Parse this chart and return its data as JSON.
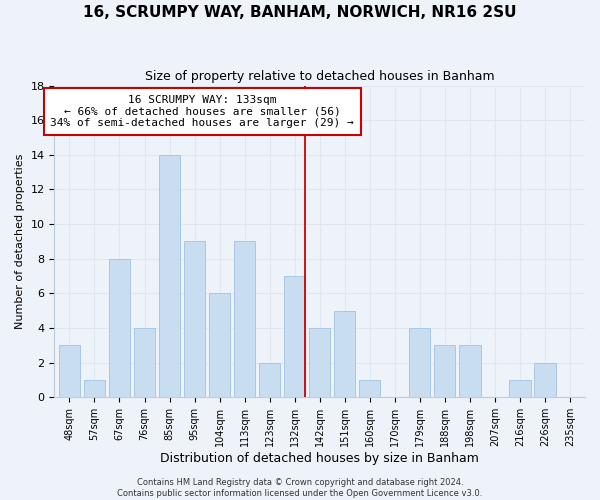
{
  "title": "16, SCRUMPY WAY, BANHAM, NORWICH, NR16 2SU",
  "subtitle": "Size of property relative to detached houses in Banham",
  "xlabel": "Distribution of detached houses by size in Banham",
  "ylabel": "Number of detached properties",
  "bar_labels": [
    "48sqm",
    "57sqm",
    "67sqm",
    "76sqm",
    "85sqm",
    "95sqm",
    "104sqm",
    "113sqm",
    "123sqm",
    "132sqm",
    "142sqm",
    "151sqm",
    "160sqm",
    "170sqm",
    "179sqm",
    "188sqm",
    "198sqm",
    "207sqm",
    "216sqm",
    "226sqm",
    "235sqm"
  ],
  "bar_values": [
    3,
    1,
    8,
    4,
    14,
    9,
    6,
    9,
    2,
    7,
    4,
    5,
    1,
    0,
    4,
    3,
    3,
    0,
    1,
    2,
    0
  ],
  "bar_color": "#c9ddf0",
  "bar_edge_color": "#a8c8e8",
  "vline_color": "#cc0000",
  "annotation_title": "16 SCRUMPY WAY: 133sqm",
  "annotation_line1": "← 66% of detached houses are smaller (56)",
  "annotation_line2": "34% of semi-detached houses are larger (29) →",
  "annotation_box_color": "#ffffff",
  "annotation_box_edge": "#cc0000",
  "footer1": "Contains HM Land Registry data © Crown copyright and database right 2024.",
  "footer2": "Contains public sector information licensed under the Open Government Licence v3.0.",
  "ylim": [
    0,
    18
  ],
  "yticks": [
    0,
    2,
    4,
    6,
    8,
    10,
    12,
    14,
    16,
    18
  ],
  "grid_color": "#dde8f0",
  "background_color": "#eef3fa"
}
